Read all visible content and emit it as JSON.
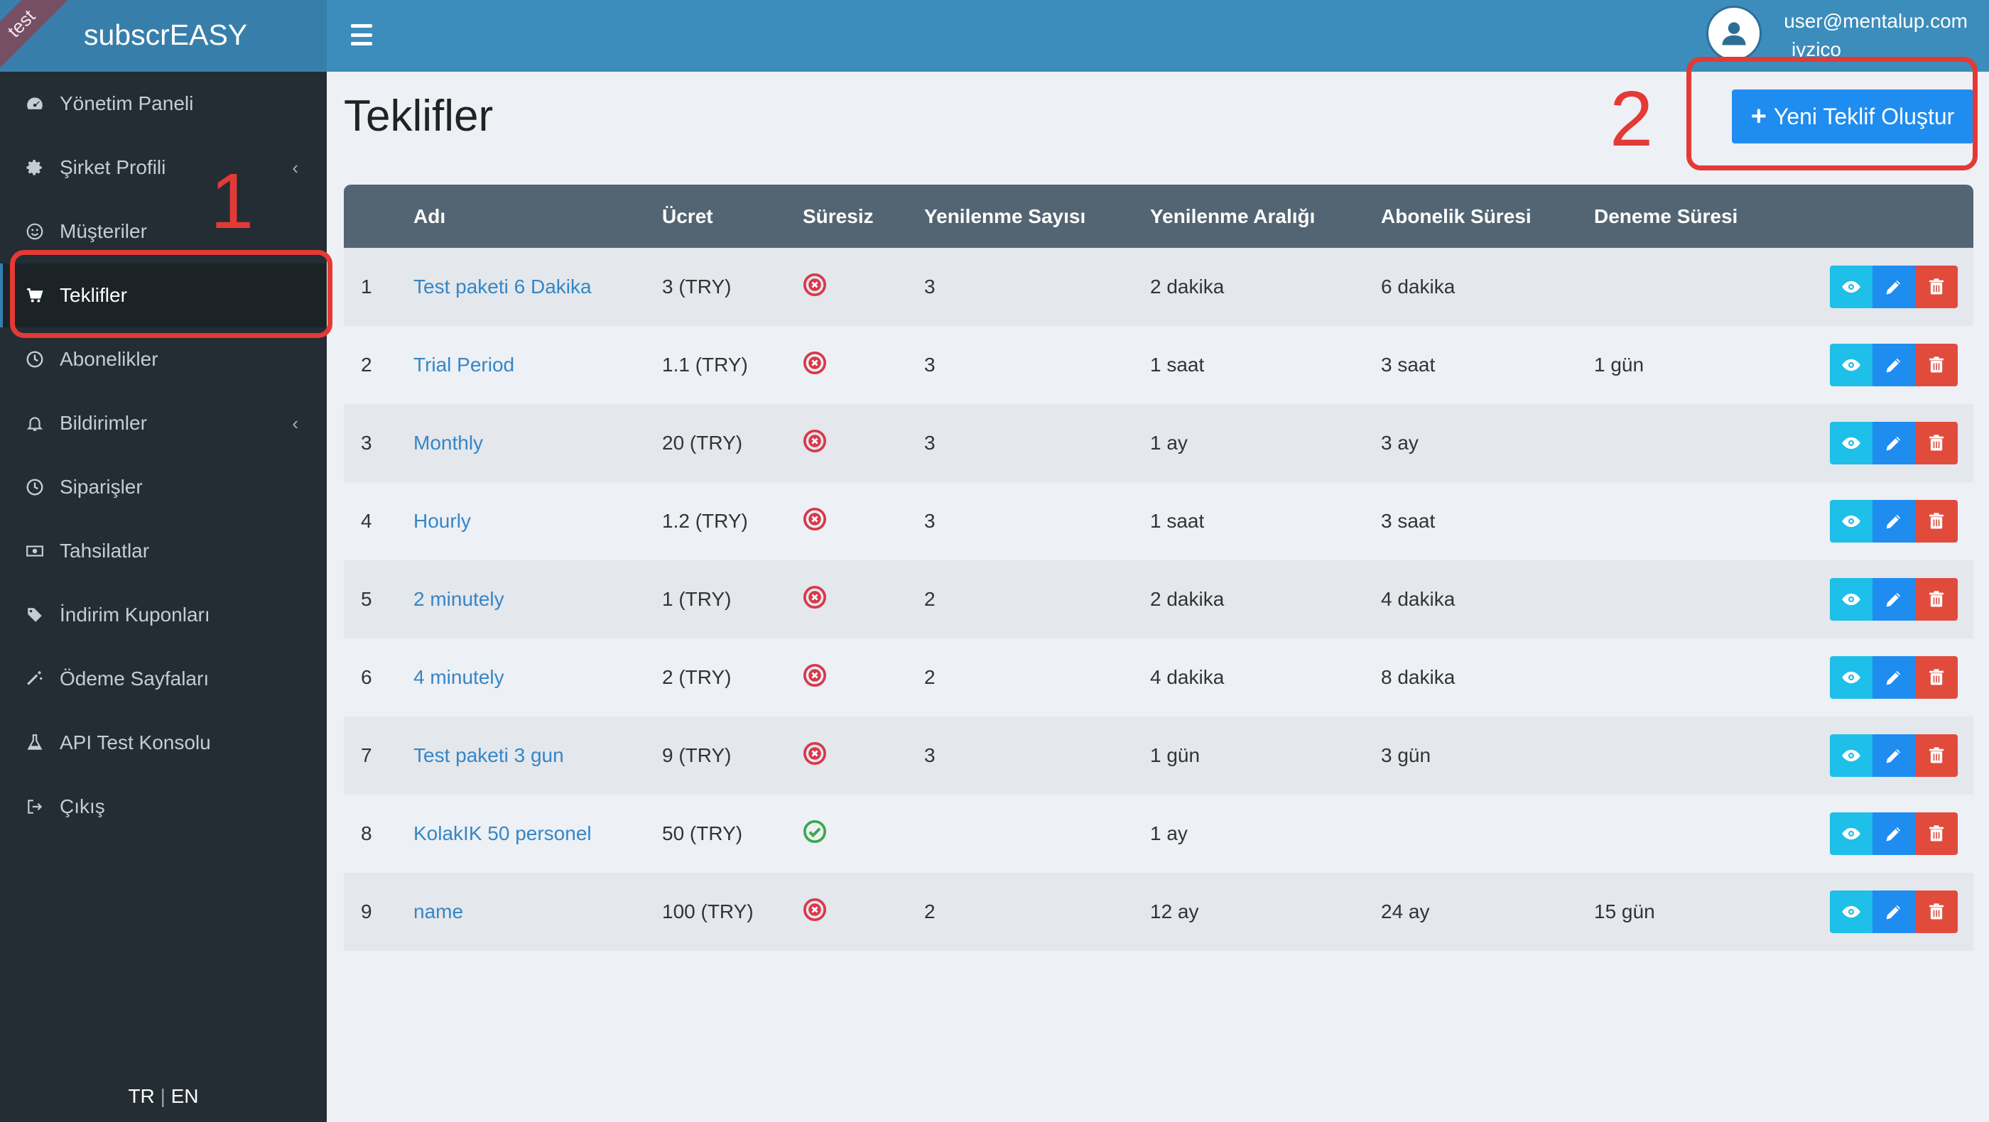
{
  "app": {
    "brand": "subscrEASY",
    "env_ribbon": "test"
  },
  "sidebar": {
    "items": [
      {
        "label": "Yönetim Paneli",
        "icon": "dashboard-icon"
      },
      {
        "label": "Şirket Profili",
        "icon": "gear-icon",
        "expandable": true
      },
      {
        "label": "Müşteriler",
        "icon": "smile-icon"
      },
      {
        "label": "Teklifler",
        "icon": "cart-icon",
        "active": true
      },
      {
        "label": "Abonelikler",
        "icon": "clock-icon"
      },
      {
        "label": "Bildirimler",
        "icon": "bell-icon",
        "expandable": true
      },
      {
        "label": "Siparişler",
        "icon": "clock-icon"
      },
      {
        "label": "Tahsilatlar",
        "icon": "money-icon"
      },
      {
        "label": "İndirim Kuponları",
        "icon": "tag-icon"
      },
      {
        "label": "Ödeme Sayfaları",
        "icon": "magic-wand-icon"
      },
      {
        "label": "API Test Konsolu",
        "icon": "flask-icon"
      },
      {
        "label": "Çıkış",
        "icon": "sign-out-icon"
      }
    ],
    "lang": {
      "tr": "TR",
      "sep": "|",
      "en": "EN"
    }
  },
  "header": {
    "user_email": "user@mentalup.com",
    "user_name": "iyzico"
  },
  "page": {
    "title": "Teklifler",
    "new_button_label": "Yeni Teklif Oluştur"
  },
  "annotations": {
    "one": "1",
    "two": "2",
    "color": "#e33a35"
  },
  "table": {
    "columns": [
      "",
      "Adı",
      "Ücret",
      "Süresiz",
      "Yenilenme Sayısı",
      "Yenilenme Aralığı",
      "Abonelik Süresi",
      "Deneme Süresi",
      ""
    ],
    "rows": [
      {
        "no": "1",
        "name": "Test paketi 6 Dakika",
        "fee": "3 (TRY)",
        "unlimited": false,
        "renew_count": "3",
        "renew_interval": "2 dakika",
        "sub_duration": "6 dakika",
        "trial": ""
      },
      {
        "no": "2",
        "name": "Trial Period",
        "fee": "1.1 (TRY)",
        "unlimited": false,
        "renew_count": "3",
        "renew_interval": "1 saat",
        "sub_duration": "3 saat",
        "trial": "1 gün"
      },
      {
        "no": "3",
        "name": "Monthly",
        "fee": "20 (TRY)",
        "unlimited": false,
        "renew_count": "3",
        "renew_interval": "1 ay",
        "sub_duration": "3 ay",
        "trial": ""
      },
      {
        "no": "4",
        "name": "Hourly",
        "fee": "1.2 (TRY)",
        "unlimited": false,
        "renew_count": "3",
        "renew_interval": "1 saat",
        "sub_duration": "3 saat",
        "trial": ""
      },
      {
        "no": "5",
        "name": "2 minutely",
        "fee": "1 (TRY)",
        "unlimited": false,
        "renew_count": "2",
        "renew_interval": "2 dakika",
        "sub_duration": "4 dakika",
        "trial": ""
      },
      {
        "no": "6",
        "name": "4 minutely",
        "fee": "2 (TRY)",
        "unlimited": false,
        "renew_count": "2",
        "renew_interval": "4 dakika",
        "sub_duration": "8 dakika",
        "trial": ""
      },
      {
        "no": "7",
        "name": "Test paketi 3 gun",
        "fee": "9 (TRY)",
        "unlimited": false,
        "renew_count": "3",
        "renew_interval": "1 gün",
        "sub_duration": "3 gün",
        "trial": ""
      },
      {
        "no": "8",
        "name": "KolakIK 50 personel",
        "fee": "50 (TRY)",
        "unlimited": true,
        "renew_count": "",
        "renew_interval": "1 ay",
        "sub_duration": "",
        "trial": ""
      },
      {
        "no": "9",
        "name": "name",
        "fee": "100 (TRY)",
        "unlimited": false,
        "renew_count": "2",
        "renew_interval": "12 ay",
        "sub_duration": "24 ay",
        "trial": "15 gün"
      }
    ]
  },
  "colors": {
    "unlimited_yes": "#3aa84a",
    "unlimited_no": "#d8384a",
    "view": "#1ebfe8",
    "edit": "#1f8cf0",
    "delete": "#e04b3c"
  }
}
